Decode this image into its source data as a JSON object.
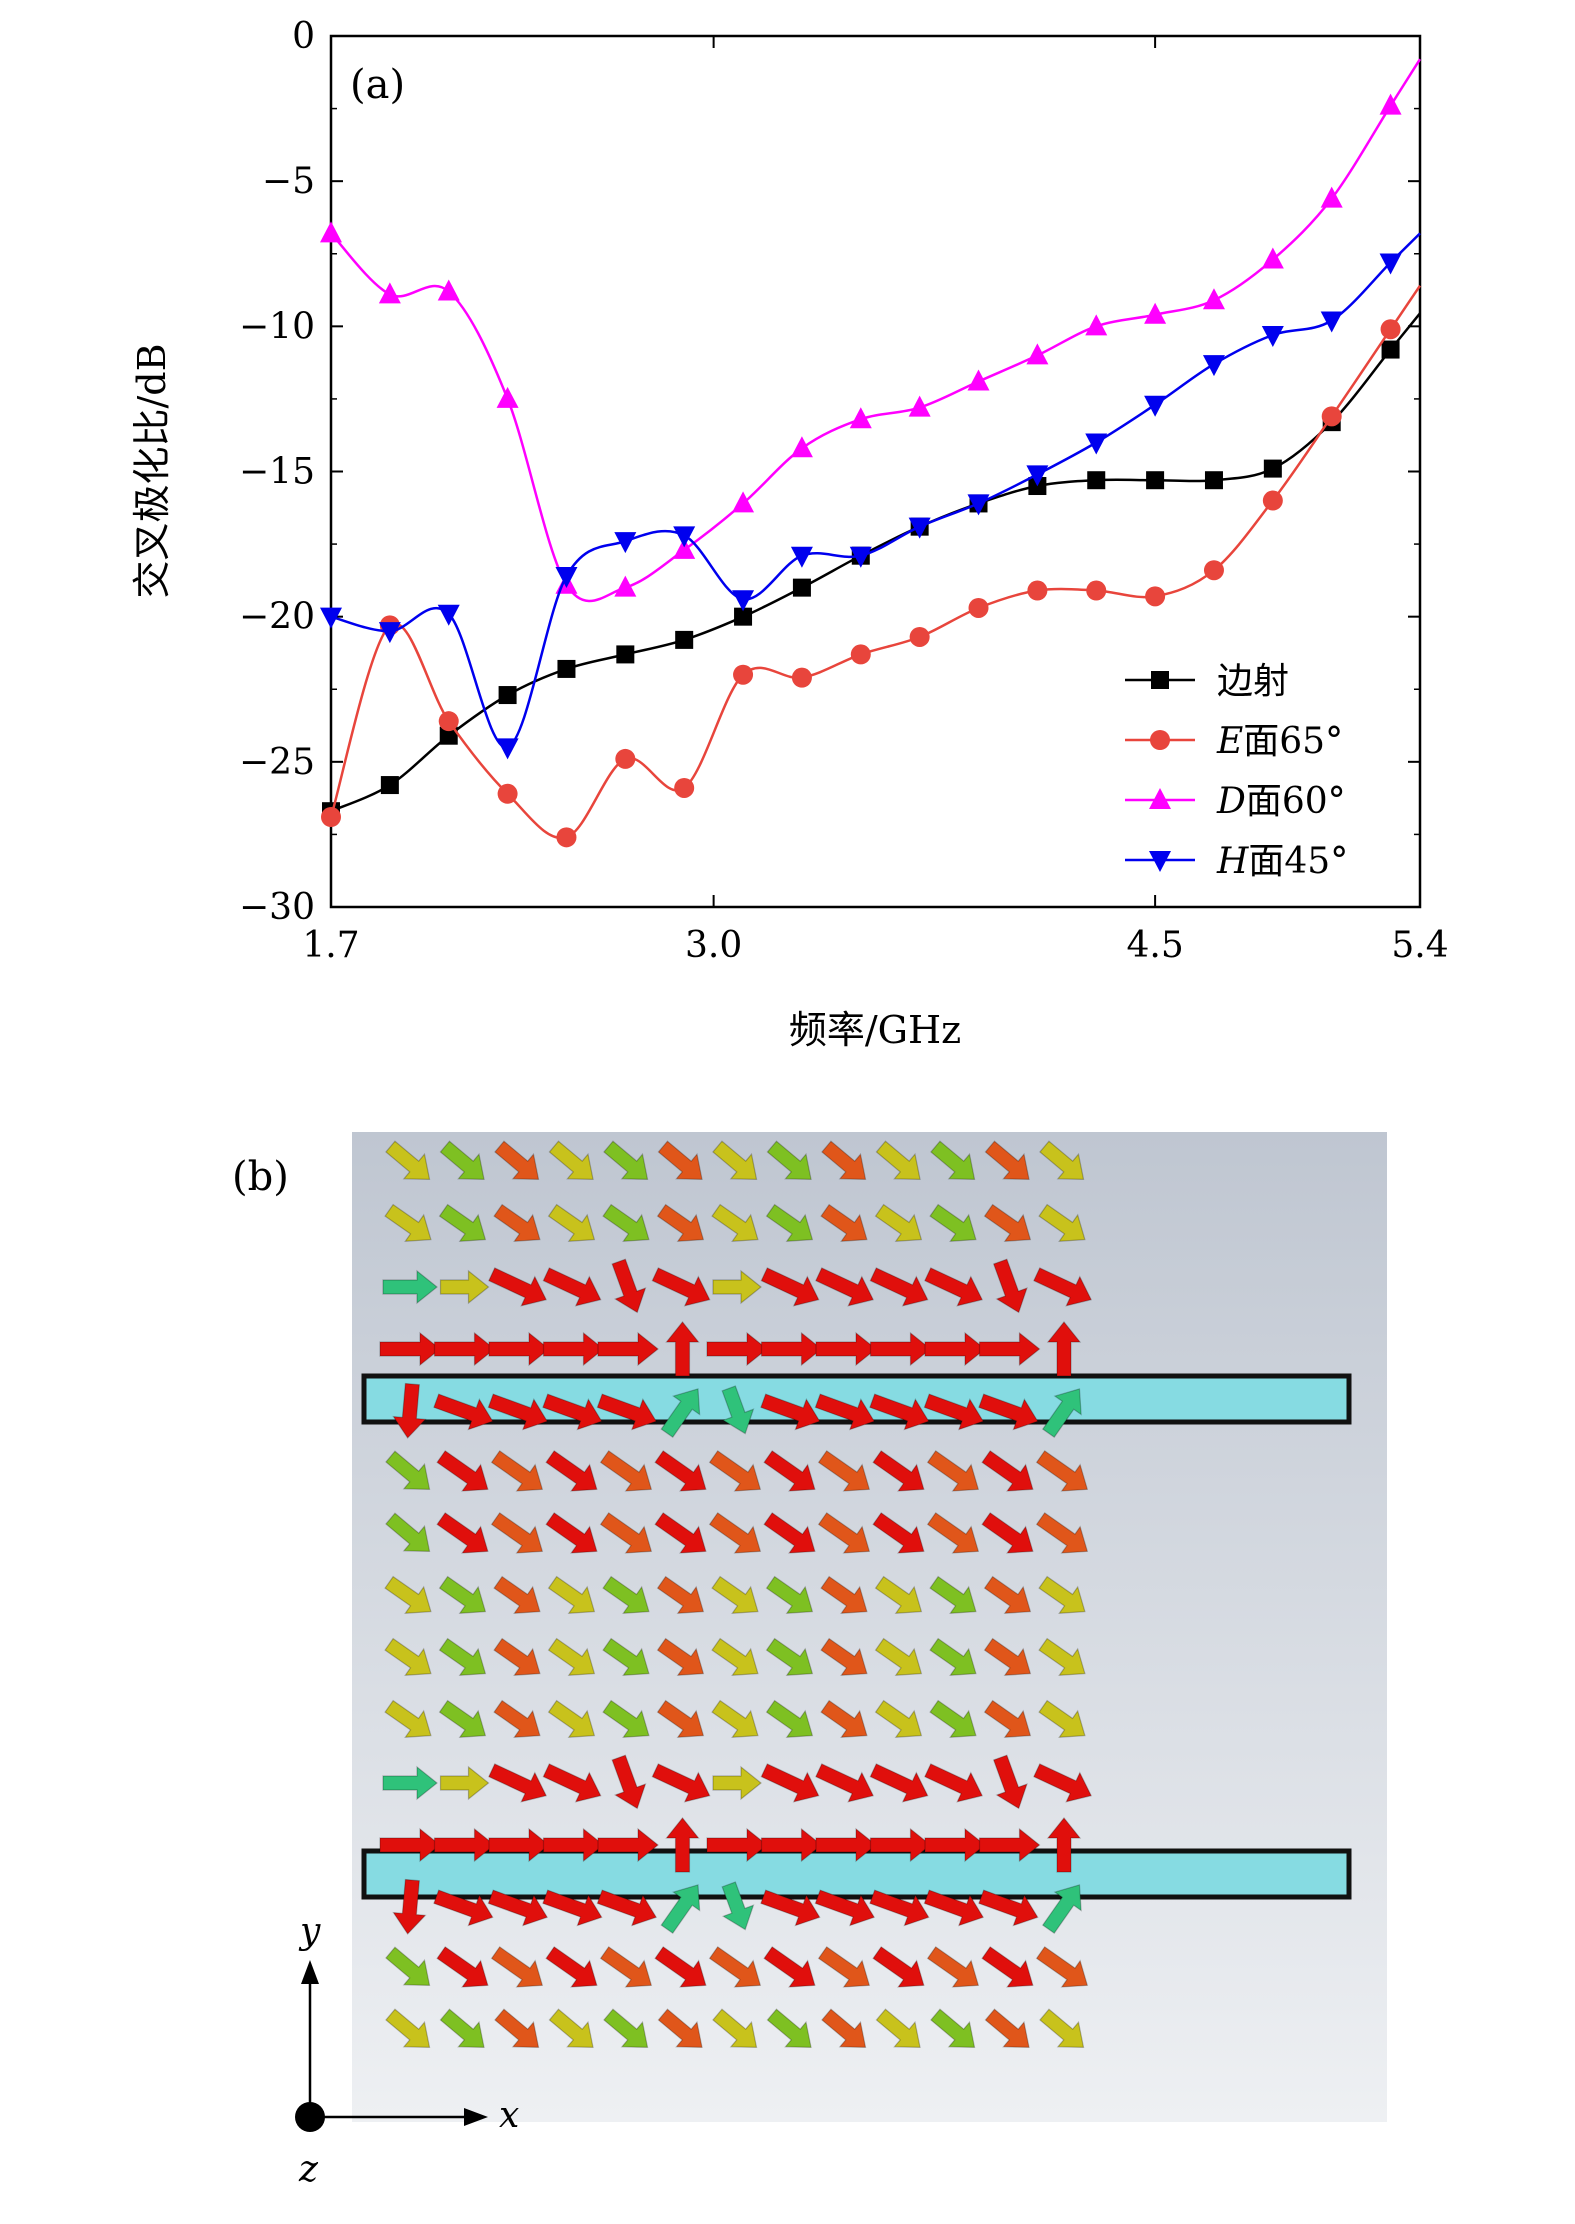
{
  "chart_data": [
    {
      "panel_label": "(a)",
      "type": "line",
      "xlabel": "频率/GHz",
      "ylabel": "交叉极化比/dB",
      "xlim": [
        1.7,
        5.4
      ],
      "ylim": [
        -30,
        0
      ],
      "xticks": [
        "1.7",
        "3.0",
        "4.5",
        "5.4"
      ],
      "xtick_values": [
        1.7,
        3.0,
        4.5,
        5.4
      ],
      "yticks": [
        "0",
        "−5",
        "−10",
        "−15",
        "−20",
        "−25",
        "−30"
      ],
      "ytick_values": [
        0,
        -5,
        -10,
        -15,
        -20,
        -25,
        -30
      ],
      "grid": false,
      "legend_position": "bottom-right",
      "x": [
        1.7,
        1.9,
        2.1,
        2.3,
        2.5,
        2.7,
        2.9,
        3.1,
        3.3,
        3.5,
        3.7,
        3.9,
        4.1,
        4.3,
        4.5,
        4.7,
        4.9,
        5.1,
        5.3
      ],
      "series": [
        {
          "name": "边射",
          "name_prefix": "",
          "name_suffix": "边射",
          "color": "#000000",
          "marker": "square",
          "values": [
            -26.7,
            -25.8,
            -24.1,
            -22.7,
            -21.8,
            -21.3,
            -20.8,
            -20.0,
            -19.0,
            -17.9,
            -16.9,
            -16.1,
            -15.5,
            -15.3,
            -15.3,
            -15.3,
            -14.9,
            -13.3,
            -10.8
          ]
        },
        {
          "name": "E面65°",
          "name_prefix": "E",
          "name_suffix": "面65°",
          "color": "#e8453c",
          "marker": "circle",
          "values": [
            -26.9,
            -20.3,
            -23.6,
            -26.1,
            -27.6,
            -24.9,
            -25.9,
            -22.0,
            -22.1,
            -21.3,
            -20.7,
            -19.7,
            -19.1,
            -19.1,
            -19.3,
            -18.4,
            -16.0,
            -13.1,
            -10.1
          ]
        },
        {
          "name": "D面60°",
          "name_prefix": "D",
          "name_suffix": "面60°",
          "color": "#ff00ff",
          "marker": "triangle-up",
          "values": [
            -6.8,
            -8.9,
            -8.8,
            -12.5,
            -18.9,
            -19.0,
            -17.7,
            -16.1,
            -14.2,
            -13.2,
            -12.8,
            -11.9,
            -11.0,
            -10.0,
            -9.6,
            -9.1,
            -7.7,
            -5.6,
            -2.4
          ]
        },
        {
          "name": "H面45°",
          "name_prefix": "H",
          "name_suffix": "面45°",
          "color": "#0000ee",
          "marker": "triangle-down",
          "values": [
            -20.0,
            -20.5,
            -19.9,
            -24.5,
            -18.6,
            -17.4,
            -17.2,
            -19.4,
            -17.9,
            -17.9,
            -16.9,
            -16.1,
            -15.1,
            -14.0,
            -12.7,
            -11.3,
            -10.3,
            -9.8,
            -7.8
          ]
        }
      ]
    },
    {
      "panel_label": "(b)",
      "type": "vector-field",
      "axes": {
        "y": "y",
        "x": "x",
        "z": "z"
      },
      "colors": {
        "high": "#e00f0c",
        "mid_high": "#e0561a",
        "mid": "#c8c21c",
        "mid_low": "#7ec022",
        "low": "#2fc27a",
        "strip": "#86dbe2",
        "background": "#c9cfd8"
      }
    }
  ]
}
